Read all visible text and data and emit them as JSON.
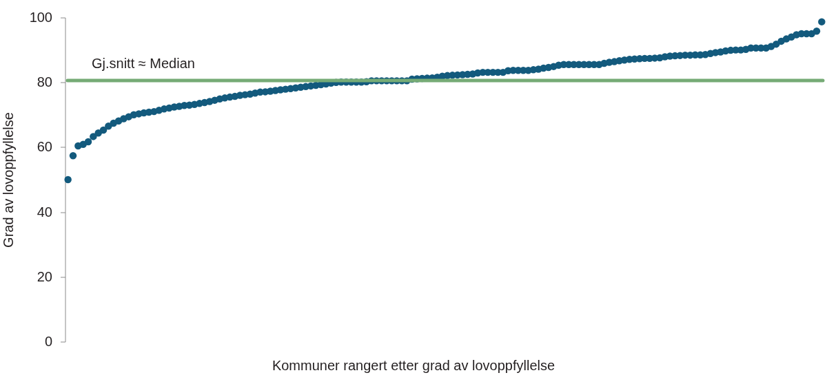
{
  "chart_data": {
    "type": "scatter",
    "xlabel": "Kommuner rangert etter grad av lovoppfyllelse",
    "ylabel": "Grad av lovoppfyllelse",
    "categories": [
      null,
      null,
      null,
      null,
      null,
      null,
      null,
      null,
      null,
      null,
      null,
      null,
      null,
      null,
      null,
      null,
      null,
      null,
      null,
      null,
      null,
      null,
      null,
      null,
      null,
      null,
      null,
      null,
      null,
      null,
      null,
      null,
      null,
      null,
      null,
      null,
      null,
      null,
      null,
      null,
      null,
      null,
      null,
      null,
      null,
      null,
      null,
      null,
      null,
      null,
      null,
      null,
      null,
      null,
      null,
      null,
      null,
      null,
      null,
      null,
      null,
      null,
      null,
      null,
      null,
      null,
      null,
      null,
      null,
      null,
      null,
      null,
      null,
      null,
      null,
      null,
      null,
      null,
      null,
      null,
      null,
      null,
      null,
      null,
      null,
      null,
      null,
      null,
      null,
      null,
      null,
      null,
      null,
      null,
      null,
      null,
      null,
      null,
      null,
      null,
      null,
      null,
      null,
      null,
      null,
      null,
      null,
      null,
      null,
      null,
      null,
      null,
      null,
      null,
      null,
      null,
      null,
      null,
      null,
      null,
      null,
      null,
      null,
      null,
      null,
      null,
      null,
      null,
      null,
      null,
      null,
      null,
      null,
      null,
      null,
      null,
      null,
      null,
      null,
      null,
      null,
      null,
      null,
      null,
      null,
      null,
      null,
      null,
      null,
      null
    ],
    "series": [
      {
        "color": "#135a7d",
        "values": [
          50.1,
          57.5,
          60.5,
          61.0,
          61.8,
          63.4,
          64.5,
          65.4,
          66.6,
          67.5,
          68.2,
          68.9,
          69.5,
          70.1,
          70.4,
          70.7,
          70.9,
          71.1,
          71.5,
          71.9,
          72.2,
          72.5,
          72.7,
          73.0,
          73.1,
          73.3,
          73.6,
          73.9,
          74.2,
          74.6,
          75.0,
          75.3,
          75.6,
          75.8,
          76.1,
          76.3,
          76.5,
          76.8,
          77.1,
          77.2,
          77.4,
          77.6,
          77.8,
          78.0,
          78.2,
          78.4,
          78.6,
          78.8,
          79.0,
          79.2,
          79.4,
          79.6,
          79.9,
          80.1,
          80.2,
          80.2,
          80.2,
          80.2,
          80.2,
          80.3,
          80.6,
          80.6,
          80.6,
          80.6,
          80.6,
          80.6,
          80.6,
          80.6,
          81.1,
          81.2,
          81.3,
          81.4,
          81.5,
          81.7,
          82.0,
          82.2,
          82.3,
          82.4,
          82.5,
          82.6,
          82.7,
          83.0,
          83.2,
          83.2,
          83.2,
          83.2,
          83.2,
          83.7,
          83.8,
          83.8,
          83.8,
          83.8,
          84.0,
          84.2,
          84.5,
          84.7,
          85.0,
          85.4,
          85.6,
          85.6,
          85.6,
          85.6,
          85.6,
          85.6,
          85.6,
          85.6,
          86.0,
          86.3,
          86.5,
          86.8,
          87.0,
          87.2,
          87.3,
          87.4,
          87.5,
          87.5,
          87.6,
          87.7,
          88.0,
          88.2,
          88.3,
          88.4,
          88.5,
          88.5,
          88.6,
          88.6,
          88.7,
          89.0,
          89.3,
          89.5,
          89.8,
          90.0,
          90.1,
          90.1,
          90.3,
          90.7,
          90.7,
          90.7,
          90.7,
          91.2,
          91.9,
          92.8,
          93.5,
          94.1,
          94.8,
          95.1,
          95.1,
          95.1,
          95.9,
          98.8
        ]
      }
    ],
    "ylim": [
      0,
      100
    ],
    "yticks": [
      0,
      20,
      40,
      60,
      80,
      100
    ],
    "ref_lines": [
      {
        "axis": "y",
        "value": 80.7,
        "label": "Gj.snitt ≈ Median",
        "color": "#76ab76"
      }
    ],
    "marker": "circle",
    "tick_labels": "y"
  }
}
